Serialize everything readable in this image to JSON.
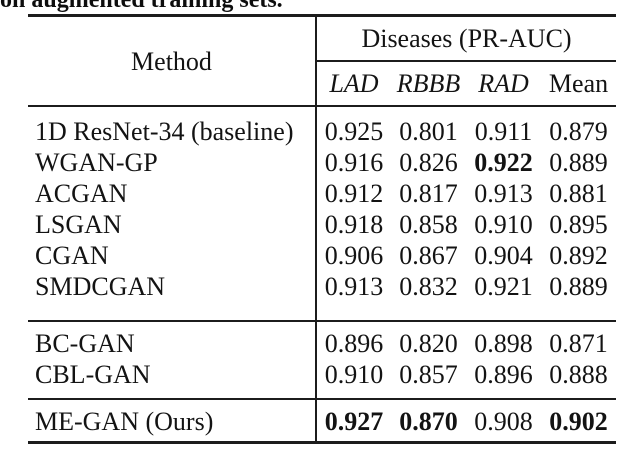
{
  "caption": "on augmented training sets.",
  "table": {
    "method_header": "Method",
    "group_header": "Diseases (PR-AUC)",
    "columns": [
      "LAD",
      "RBBB",
      "RAD",
      "Mean"
    ],
    "rows": [
      {
        "method": "1D ResNet-34 (baseline)",
        "values": [
          "0.925",
          "0.801",
          "0.911",
          "0.879"
        ],
        "bold": [
          false,
          false,
          false,
          false
        ]
      },
      {
        "method": "WGAN-GP",
        "values": [
          "0.916",
          "0.826",
          "0.922",
          "0.889"
        ],
        "bold": [
          false,
          false,
          true,
          false
        ]
      },
      {
        "method": "ACGAN",
        "values": [
          "0.912",
          "0.817",
          "0.913",
          "0.881"
        ],
        "bold": [
          false,
          false,
          false,
          false
        ]
      },
      {
        "method": "LSGAN",
        "values": [
          "0.918",
          "0.858",
          "0.910",
          "0.895"
        ],
        "bold": [
          false,
          false,
          false,
          false
        ]
      },
      {
        "method": "CGAN",
        "values": [
          "0.906",
          "0.867",
          "0.904",
          "0.892"
        ],
        "bold": [
          false,
          false,
          false,
          false
        ]
      },
      {
        "method": "SMDCGAN",
        "values": [
          "0.913",
          "0.832",
          "0.921",
          "0.889"
        ],
        "bold": [
          false,
          false,
          false,
          false
        ]
      },
      {
        "method": "BC-GAN",
        "values": [
          "0.896",
          "0.820",
          "0.898",
          "0.871"
        ],
        "bold": [
          false,
          false,
          false,
          false
        ]
      },
      {
        "method": "CBL-GAN",
        "values": [
          "0.910",
          "0.857",
          "0.896",
          "0.888"
        ],
        "bold": [
          false,
          false,
          false,
          false
        ]
      },
      {
        "method": "ME-GAN (Ours)",
        "values": [
          "0.927",
          "0.870",
          "0.908",
          "0.902"
        ],
        "bold": [
          true,
          true,
          false,
          true
        ]
      }
    ]
  }
}
